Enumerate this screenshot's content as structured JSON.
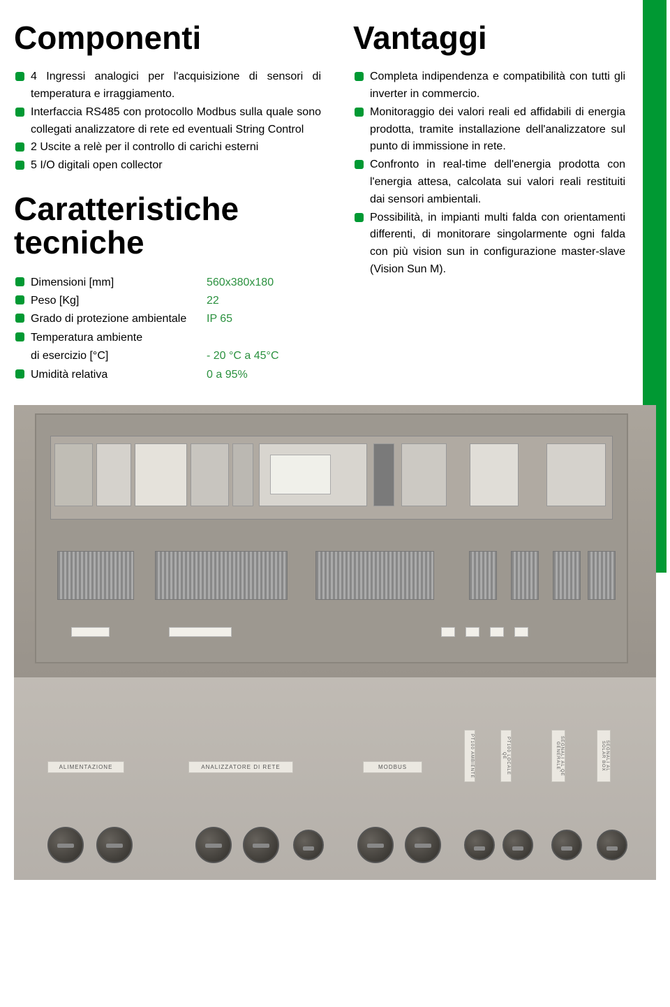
{
  "accent_color": "#009933",
  "spec_value_color": "#2b913f",
  "text_color": "#000000",
  "headings": {
    "componenti": "Componenti",
    "caratteristiche": "Caratteristiche tecniche",
    "vantaggi": "Vantaggi"
  },
  "componenti_items": [
    "4 Ingressi analogici per l'acquisizione di sensori di temperatura e irraggiamento.",
    "Interfaccia RS485 con protocollo Modbus sulla quale sono collegati analizzatore di rete ed eventuali String Control",
    "2 Uscite a relè per il controllo di carichi esterni",
    "5 I/O digitali open collector"
  ],
  "vantaggi_items": [
    "Completa indipendenza e compatibilità con tutti gli inverter in commercio.",
    "Monitoraggio dei valori reali ed affidabili di energia prodotta, tramite installazione dell'analizzatore sul punto di immissione in rete.",
    "Confronto in real-time dell'energia prodotta con l'energia attesa, calcolata sui valori reali restituiti dai sensori ambientali.",
    "Possibilità, in impianti multi falda con orientamenti differenti, di monitorare singolarmente ogni falda con più vision sun in configurazione master-slave (Vision Sun M)."
  ],
  "specs": [
    {
      "label": "Dimensioni [mm]",
      "value": "560x380x180",
      "bullet": true
    },
    {
      "label": "Peso [Kg]",
      "value": "22",
      "bullet": true
    },
    {
      "label": "Grado di protezione ambientale",
      "value": "IP 65",
      "bullet": true
    },
    {
      "label": "Temperatura ambiente",
      "value": "",
      "bullet": true
    },
    {
      "label": "di esercizio [°C]",
      "value": "- 20 °C a 45°C",
      "bullet": false
    },
    {
      "label": "Umidità relativa",
      "value": "0 a 95%",
      "bullet": true
    }
  ],
  "panel_labels": {
    "alimentazione": "ALIMENTAZIONE",
    "analizzatore": "ANALIZZATORE DI RETE",
    "modbus": "MODBUS",
    "pt100_amb": "PT100 AMBIENTE",
    "pt100_loc": "PT100 LOCALE QE",
    "segnali_qe": "SEGNALI AL QE GENERALE",
    "segnali_solar": "SEGNALI AL SOLAR BOX"
  }
}
